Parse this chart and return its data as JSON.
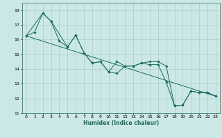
{
  "xlabel": "Humidex (Indice chaleur)",
  "bg_color": "#cce8e6",
  "grid_color": "#aaccca",
  "line_color": "#1a6b60",
  "xlim": [
    -0.5,
    23.5
  ],
  "ylim": [
    11,
    18.5
  ],
  "xticks": [
    0,
    1,
    2,
    3,
    4,
    5,
    6,
    7,
    8,
    9,
    10,
    11,
    12,
    13,
    14,
    15,
    16,
    17,
    18,
    19,
    20,
    21,
    22,
    23
  ],
  "yticks": [
    11,
    12,
    13,
    14,
    15,
    16,
    17,
    18
  ],
  "series1_x": [
    0,
    1,
    2,
    3,
    4,
    5,
    6,
    7,
    8,
    9,
    10,
    11,
    12,
    13,
    14,
    15,
    16,
    17,
    18,
    19,
    20,
    21,
    22,
    23
  ],
  "series1_y": [
    16.25,
    16.5,
    17.8,
    17.25,
    15.9,
    15.5,
    16.3,
    15.1,
    14.4,
    14.5,
    13.8,
    14.5,
    14.2,
    14.2,
    14.4,
    14.3,
    14.3,
    13.1,
    11.5,
    11.55,
    12.5,
    12.4,
    12.4,
    12.15
  ],
  "series2_x": [
    0,
    2,
    3,
    5,
    6,
    7,
    8,
    9,
    10,
    11,
    12,
    13,
    14,
    15,
    16,
    17,
    18,
    19,
    20,
    21,
    22,
    23
  ],
  "series2_y": [
    16.25,
    17.8,
    17.25,
    15.5,
    16.3,
    15.1,
    14.4,
    14.5,
    13.8,
    13.7,
    14.2,
    14.2,
    14.4,
    14.5,
    14.5,
    14.2,
    11.5,
    11.55,
    12.5,
    12.4,
    12.4,
    12.15
  ],
  "series3_x": [
    0,
    23
  ],
  "series3_y": [
    16.25,
    12.15
  ]
}
